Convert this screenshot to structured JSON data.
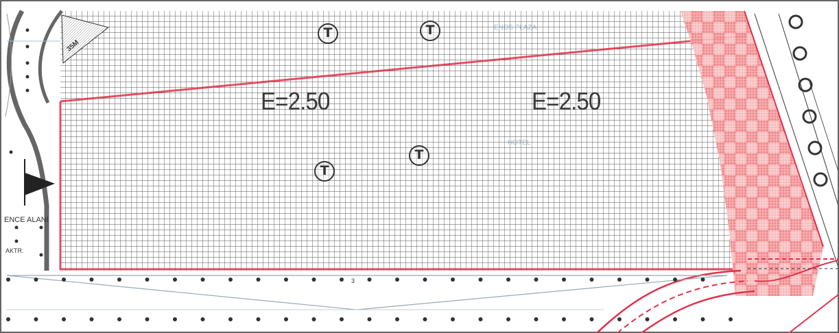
{
  "plan": {
    "density_labels": [
      "E=2.50",
      "E=2.50"
    ],
    "tree_symbol": "T",
    "side_label": "ENCE ALANI",
    "small_label": "AKTR.",
    "corner_badge": "35M",
    "faint_labels": [
      "ENDS PLAZA",
      "HOTEL"
    ],
    "small_number": "3"
  },
  "colors": {
    "boundary_red": "#e0304a",
    "hatch_pink": "#f08a8a",
    "grid_line": "#4a4a4a",
    "road_gray": "#555555"
  }
}
